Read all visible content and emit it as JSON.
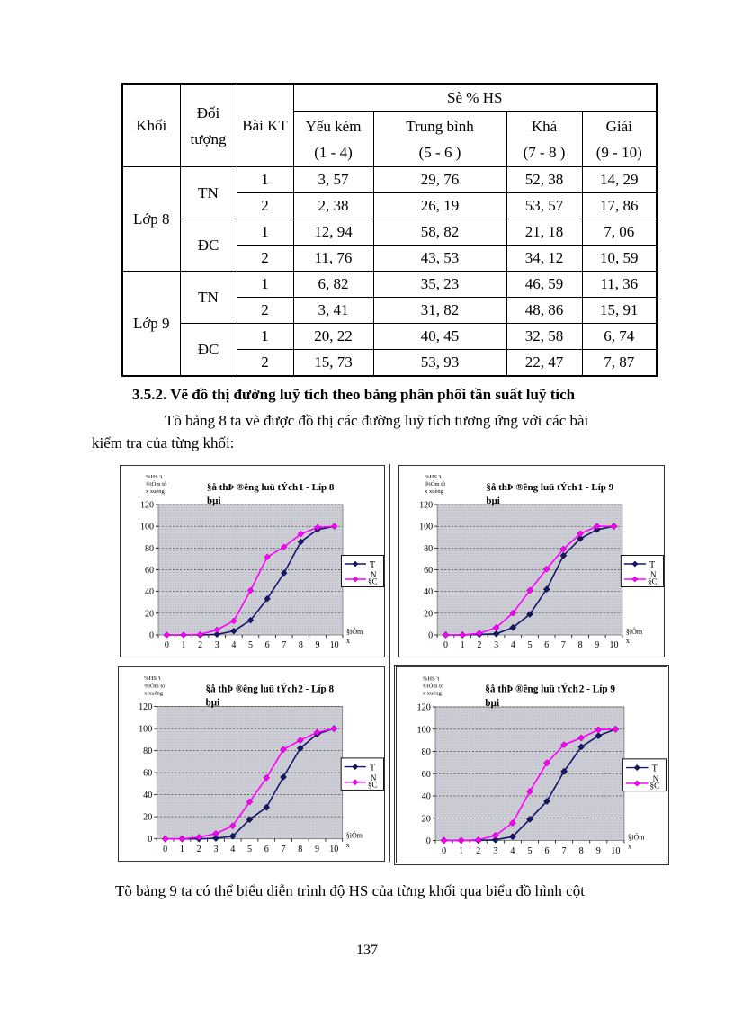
{
  "page": {
    "number": "137"
  },
  "table": {
    "headers": {
      "khoi": "Khối",
      "doi_tuong_l1": "Đối",
      "doi_tuong_l2": "tượng",
      "bai_kt": "Bài KT",
      "se_hs": "Sè % HS",
      "groups": [
        {
          "name": "Yếu kém",
          "range": "(1 - 4)"
        },
        {
          "name": "Trung bình",
          "range": "(5 - 6 )"
        },
        {
          "name": "Khá",
          "range": "(7 - 8 )"
        },
        {
          "name": "Giái",
          "range": "(9 - 10)"
        }
      ]
    },
    "khoi_labels": [
      "Lớp 8",
      "Lớp 9"
    ],
    "doi_tuong_labels": [
      "TN",
      "ĐC",
      "TN",
      "ĐC"
    ],
    "rows": [
      {
        "bai": "1",
        "v": [
          "3, 57",
          "29, 76",
          "52, 38",
          "14, 29"
        ]
      },
      {
        "bai": "2",
        "v": [
          "2, 38",
          "26, 19",
          "53, 57",
          "17, 86"
        ]
      },
      {
        "bai": "1",
        "v": [
          "12, 94",
          "58, 82",
          "21, 18",
          "7, 06"
        ]
      },
      {
        "bai": "2",
        "v": [
          "11, 76",
          "43, 53",
          "34, 12",
          "10, 59"
        ]
      },
      {
        "bai": "1",
        "v": [
          "6, 82",
          "35, 23",
          "46, 59",
          "11, 36"
        ]
      },
      {
        "bai": "2",
        "v": [
          "3, 41",
          "31, 82",
          "48, 86",
          "15, 91"
        ]
      },
      {
        "bai": "1",
        "v": [
          "20, 22",
          "40, 45",
          "32, 58",
          "6, 74"
        ]
      },
      {
        "bai": "2",
        "v": [
          "15, 73",
          "53, 93",
          "22, 47",
          "7, 87"
        ]
      }
    ]
  },
  "section": {
    "heading": "3.5.2. Vẽ đồ thị đường luỹ tích theo bảng phân phối tần suất luỹ tích",
    "para_line1": "Tõ bảng 8 ta vẽ được đồ thị các đường luỹ tích tương ứng với các bài",
    "para_line2": "kiểm tra của từng khối:"
  },
  "bottom_para": "Tõ bảng 9 ta có thể biểu diễn trình độ HS của từng khối qua biểu đồ hình cột",
  "chart_common": {
    "ylabel_lines": [
      "%HS 't",
      "®iÓm tõ",
      "x xuèng"
    ],
    "xlabel_lines": [
      "§iÓm",
      "x"
    ],
    "legend": {
      "row1": "T",
      "row2_top": "N",
      "row2_bottom": "§C"
    },
    "colors": {
      "tn": "#16166b",
      "dc": "#ff00ff",
      "plot_bg": "#cdcdd6",
      "plot_dot": "#b4b4c0",
      "grid": "#444444"
    },
    "yticks": [
      0,
      20,
      40,
      60,
      80,
      100,
      120
    ],
    "xticks": [
      "0",
      "1",
      "2",
      "3",
      "4",
      "5",
      "6",
      "7",
      "8",
      "9",
      "10"
    ]
  },
  "chart_data": [
    {
      "type": "line",
      "title_main": "§å thÞ ®êng luü tÝch",
      "title_suffix": "1 - Líp 8",
      "title_wrap": "bµi",
      "xlabel": "§iÓm x",
      "ylabel": "%HS ®¹t ®iÓm tõ x xuèng",
      "x": [
        0,
        1,
        2,
        3,
        4,
        5,
        6,
        7,
        8,
        9,
        10
      ],
      "ylim": [
        0,
        120
      ],
      "grid": true,
      "legend_position": "right",
      "series": [
        {
          "name": "TN",
          "values": [
            0,
            0,
            0,
            0.5,
            3.57,
            13.5,
            33.33,
            57,
            85.71,
            97,
            100
          ]
        },
        {
          "name": "§C",
          "values": [
            0,
            0,
            0.5,
            4.7,
            12.94,
            41,
            71.76,
            81,
            92.94,
            99,
            100
          ]
        }
      ]
    },
    {
      "type": "line",
      "title_main": "§å thÞ ®êng luü tÝch",
      "title_suffix": "1 - Líp 9",
      "title_wrap": "bµi",
      "xlabel": "§iÓm x",
      "ylabel": "%HS ®¹t ®iÓm tõ x xuèng",
      "x": [
        0,
        1,
        2,
        3,
        4,
        5,
        6,
        7,
        8,
        9,
        10
      ],
      "ylim": [
        0,
        120
      ],
      "grid": true,
      "legend_position": "right",
      "series": [
        {
          "name": "TN",
          "values": [
            0,
            0,
            0.5,
            1,
            6.82,
            19,
            42.05,
            73,
            88.64,
            97,
            100
          ]
        },
        {
          "name": "§C",
          "values": [
            0,
            0,
            1.5,
            6.7,
            20.22,
            41,
            60.67,
            79,
            93.26,
            100,
            100
          ]
        }
      ]
    },
    {
      "type": "line",
      "title_main": "§å thÞ ®êng luü tÝch",
      "title_suffix": "2 - Líp 8",
      "title_wrap": "bµi",
      "xlabel": "§iÓm x",
      "ylabel": "%HS ®¹t ®iÓm tõ x xuèng",
      "x": [
        0,
        1,
        2,
        3,
        4,
        5,
        6,
        7,
        8,
        9,
        10
      ],
      "ylim": [
        0,
        120
      ],
      "grid": true,
      "legend_position": "right",
      "series": [
        {
          "name": "TN",
          "values": [
            0,
            0,
            0,
            0.5,
            2.38,
            17.5,
            28.57,
            56,
            82.14,
            95,
            100
          ]
        },
        {
          "name": "§C",
          "values": [
            0,
            0,
            1.5,
            4.7,
            11.76,
            33.5,
            55.29,
            81,
            89.41,
            96.5,
            100
          ]
        }
      ]
    },
    {
      "type": "line",
      "title_main": "§å thÞ ®êng luü tÝch",
      "title_suffix": "2 - Líp 9",
      "title_wrap": "bµi",
      "xlabel": "§iÓm x",
      "ylabel": "%HS ®¹t ®iÓm tõ x xuèng",
      "x": [
        0,
        1,
        2,
        3,
        4,
        5,
        6,
        7,
        8,
        9,
        10
      ],
      "ylim": [
        0,
        120
      ],
      "grid": true,
      "legend_position": "right",
      "series": [
        {
          "name": "TN",
          "values": [
            0,
            0,
            0,
            0.5,
            3.41,
            19,
            35.23,
            62,
            84.09,
            94,
            100
          ]
        },
        {
          "name": "§C",
          "values": [
            0,
            0,
            0.5,
            4.5,
            15.73,
            44,
            69.66,
            86,
            92.13,
            99.5,
            100
          ]
        }
      ]
    }
  ]
}
